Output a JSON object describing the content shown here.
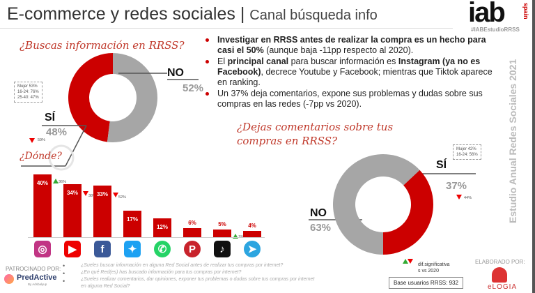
{
  "header": {
    "title": "E-commerce y redes sociales",
    "separator": "|",
    "subtitle": "Canal búsqueda info",
    "logo": "iab",
    "logo_sub": "spain",
    "hashtag": "#IABEstudioRRSS"
  },
  "vertical_label": "Estudio Anual Redes Sociales 2021",
  "q1": {
    "question": "¿Buscas información en RRSS?",
    "yes_label": "SÍ",
    "yes_pct": "48%",
    "no_label": "NO",
    "no_pct": "52%",
    "yes_value": 48,
    "no_value": 52,
    "tooltip": [
      "Mujer 53%",
      "16-24: 76%",
      "25-40: 47%"
    ],
    "prev": "59%"
  },
  "q2": {
    "question_line1": "¿Dejas comentarios sobre tus",
    "question_line2": "compras en RRSS?",
    "yes_label": "SÍ",
    "yes_pct": "37%",
    "no_label": "NO",
    "no_pct": "63%",
    "yes_value": 37,
    "no_value": 63,
    "tooltip": [
      "Mujer 42%",
      "16-24: 56%"
    ],
    "prev": "44%"
  },
  "bullets": [
    {
      "bold": "Investigar en RRSS antes de realizar la compra es un hecho para casi el 50%",
      "text": " (aunque baja -11pp respecto al 2020)."
    },
    {
      "pre": "El ",
      "bold": "principal canal",
      "mid": " para buscar información es ",
      "bold2": "Instagram (ya no es Facebook)",
      "text": ", decrece Youtube y Facebook; mientras que Tiktok aparece en ranking."
    },
    {
      "text": "Un 37% deja comentarios, expone sus problemas y dudas sobre sus compras en las redes (-7pp vs 2020)."
    }
  ],
  "donde": "¿Dónde?",
  "chart_data": {
    "type": "bar",
    "categories": [
      "Instagram",
      "YouTube",
      "Facebook",
      "Twitter",
      "WhatsApp",
      "Pinterest",
      "TikTok",
      "Telegram"
    ],
    "values": [
      40,
      34,
      33,
      17,
      12,
      6,
      5,
      4
    ],
    "labels": [
      "40%",
      "34%",
      "33%",
      "17%",
      "12%",
      "6%",
      "5%",
      "4%"
    ],
    "changes": [
      {
        "dir": "up",
        "prev": "36%"
      },
      {
        "dir": "down",
        "prev": "38%"
      },
      {
        "dir": "down",
        "prev": "52%"
      },
      null,
      null,
      null,
      {
        "dir": "up",
        "prev": "1%"
      },
      null
    ]
  },
  "footer": {
    "sponsor_label": "PATROCINADO POR:",
    "sponsor": "PredActive",
    "sponsor_sub": "By Adsbalyup",
    "questions": [
      "¿Sueles buscar información en alguna Red Social antes de realizar tus compras por internet?",
      "¿En qué Red(es) has buscado información para tus compras por internet?",
      "¿Sueles realizar comentarios, dar opiniones, exponer tus problemas o dudas sobre tus compras por internet en alguna Red Social?"
    ],
    "legend_line1": "dif.significativa",
    "legend_line2": "s vs 2020",
    "base": "Base usuarios RRSS: 932",
    "made_by": "ELABORADO POR:",
    "maker": "eLOGIA"
  },
  "colors": {
    "red": "#cc0000",
    "gray": "#a6a6a6",
    "up": "#33aa33",
    "down": "#ee0000"
  }
}
